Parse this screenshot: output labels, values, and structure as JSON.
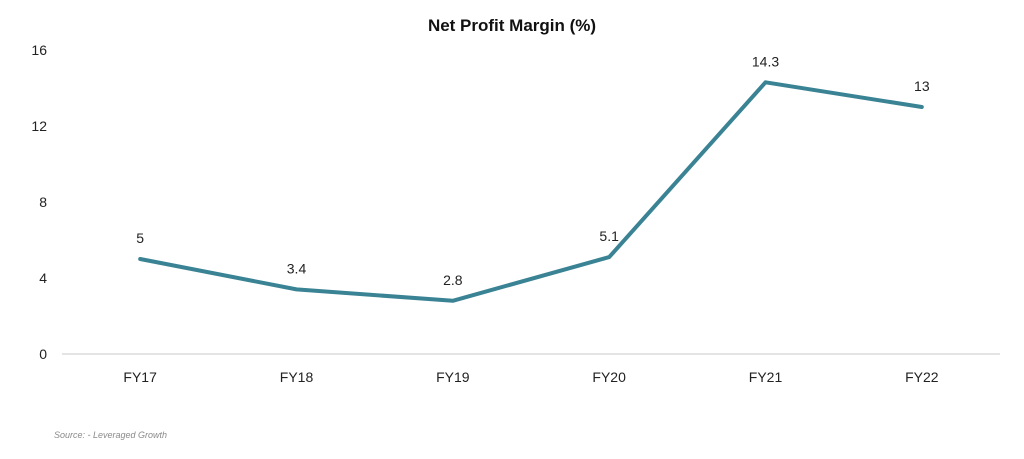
{
  "chart_data": {
    "type": "line",
    "title": "Net Profit Margin (%)",
    "xlabel": "",
    "ylabel": "",
    "categories": [
      "FY17",
      "FY18",
      "FY19",
      "FY20",
      "FY21",
      "FY22"
    ],
    "series": [
      {
        "values": [
          5,
          3.4,
          2.8,
          5.1,
          14.3,
          13
        ],
        "data_labels": [
          "5",
          "3.4",
          "2.8",
          "5.1",
          "14.3",
          "13"
        ],
        "color": "#3a8394"
      }
    ],
    "ylim": [
      0,
      16
    ],
    "yticks": [
      0,
      4,
      8,
      12,
      16
    ],
    "ytick_labels": [
      "0",
      "4",
      "8",
      "12",
      "16"
    ],
    "grid": false,
    "legend": "none"
  },
  "source": "Source: - Leveraged Growth",
  "colors": {
    "line": "#3a8394",
    "axis": "#c9c9c9",
    "text": "#222222"
  }
}
